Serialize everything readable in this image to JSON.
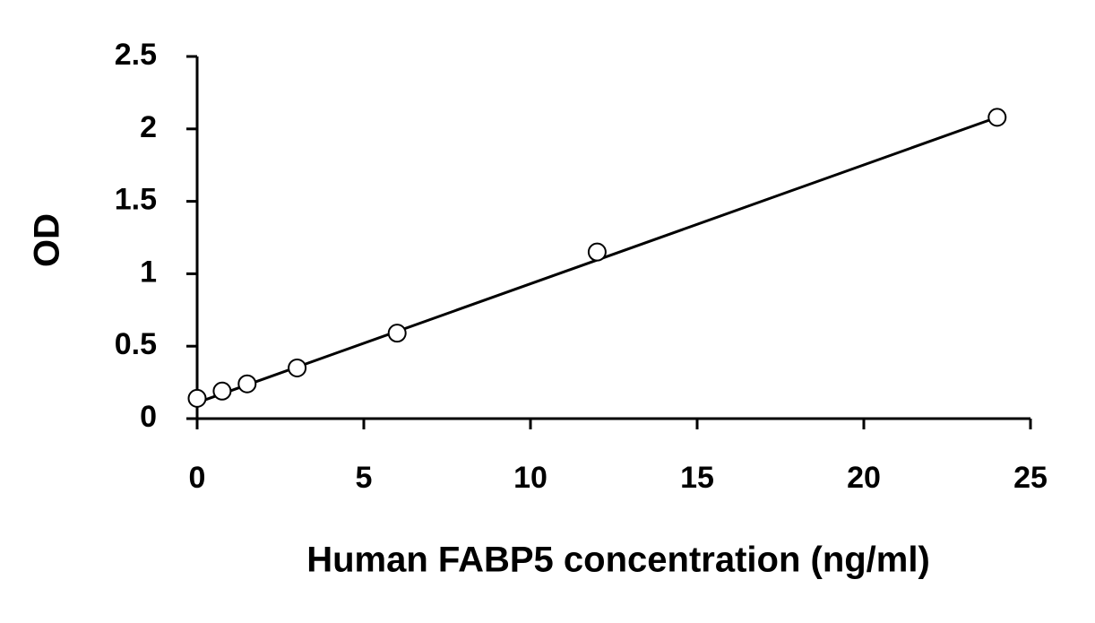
{
  "chart_data": {
    "type": "scatter",
    "x_label": "Human FABP5 concentration (ng/ml)",
    "y_label": "OD",
    "x": [
      0,
      0.75,
      1.5,
      3,
      6,
      12,
      24
    ],
    "values": [
      0.14,
      0.19,
      0.24,
      0.35,
      0.59,
      1.15,
      2.08
    ],
    "trendline": {
      "x": [
        0,
        24
      ],
      "values": [
        0.11,
        2.08
      ]
    },
    "color": "#000000",
    "xlim": [
      0,
      25
    ],
    "xticks": [
      0,
      5,
      10,
      15,
      20,
      25
    ],
    "ylim": [
      0,
      2.5
    ],
    "yticks": [
      0,
      0.5,
      1,
      1.5,
      2,
      2.5
    ],
    "grid": false
  }
}
